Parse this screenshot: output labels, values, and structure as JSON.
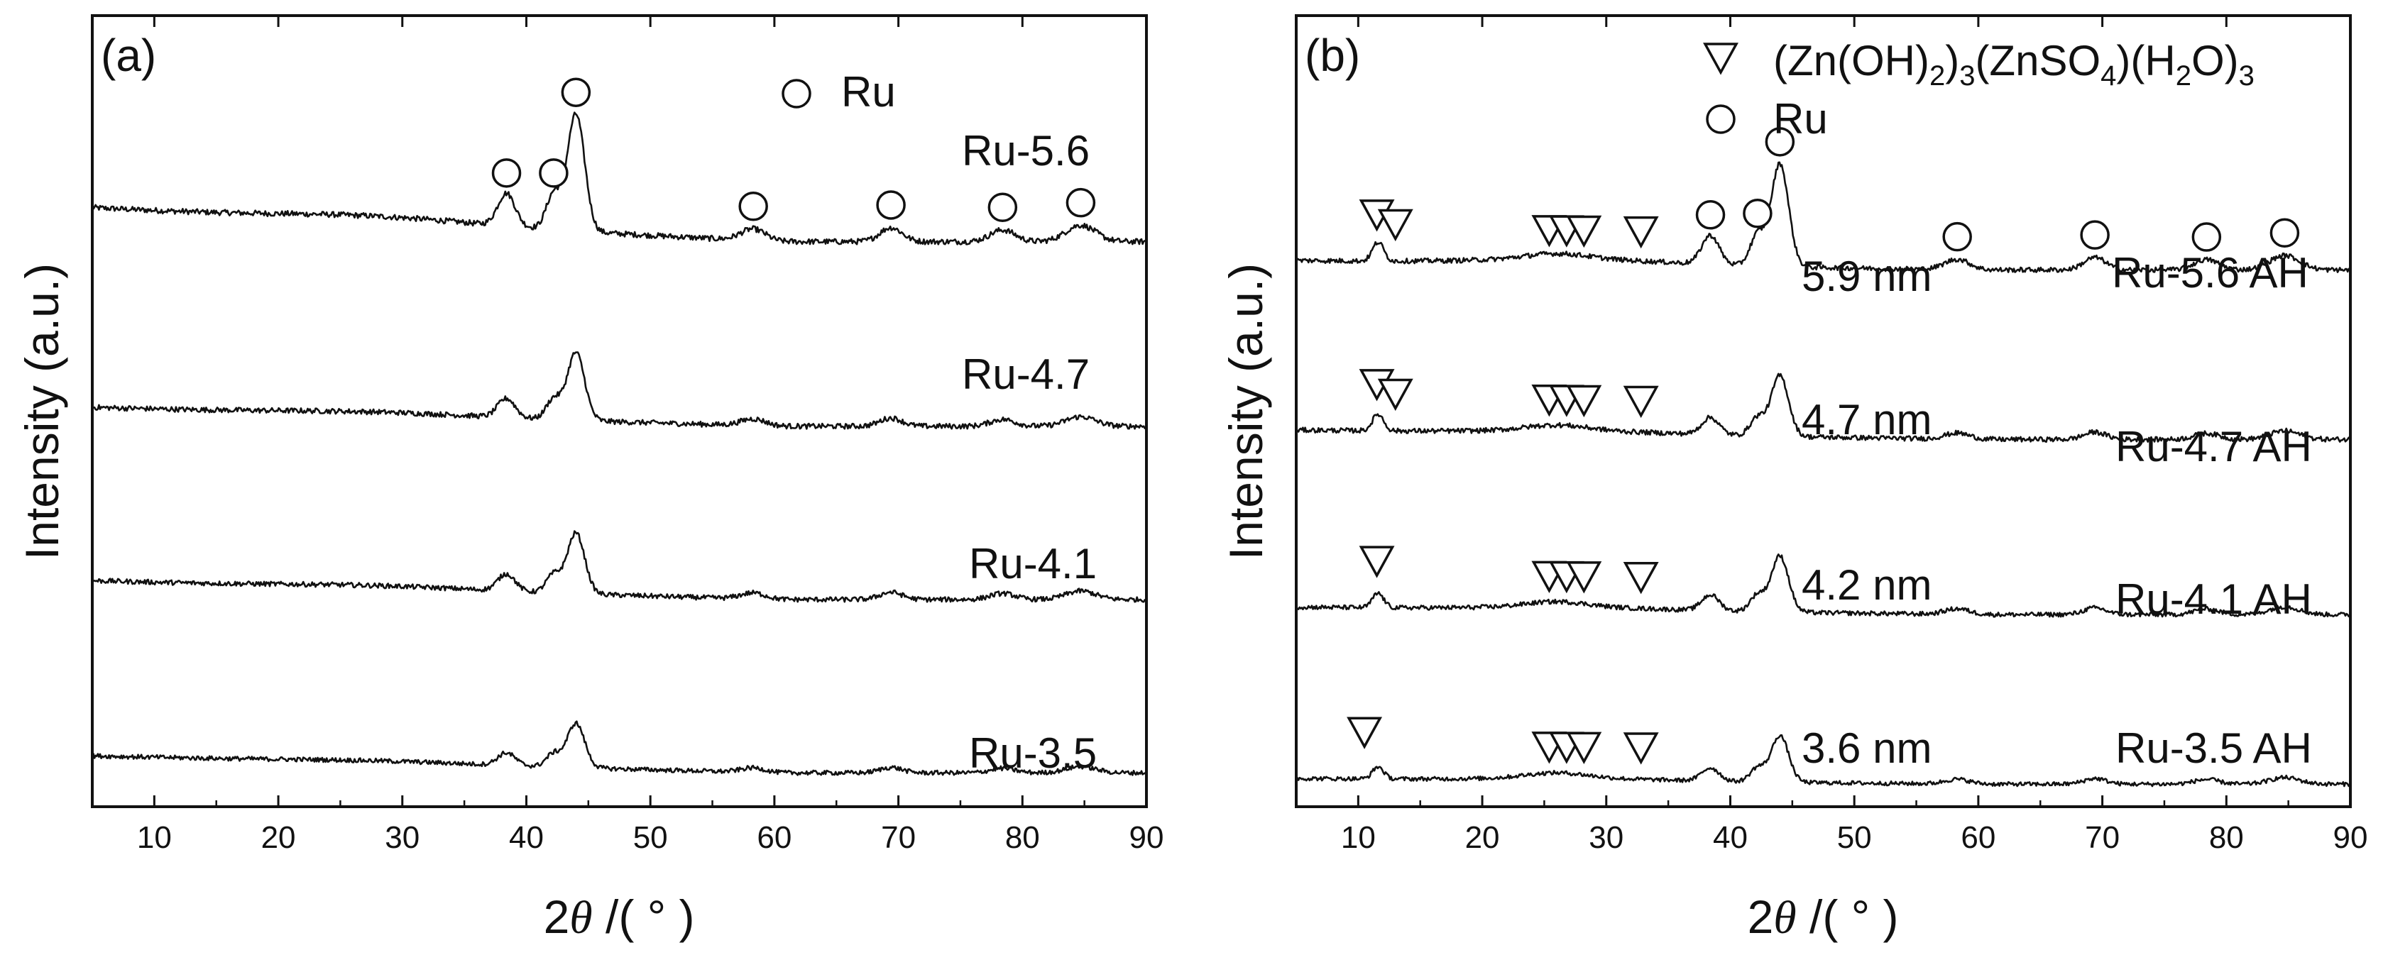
{
  "chart_data": [
    {
      "type": "line",
      "panel_label": "(a)",
      "title": "",
      "xlabel": {
        "prefix": "2",
        "theta": "θ",
        "suffix": " /( ° )"
      },
      "ylabel": "Intensity (a.u.)",
      "xlim": [
        5,
        90
      ],
      "xticks": [
        10,
        20,
        30,
        40,
        50,
        60,
        70,
        80,
        90
      ],
      "legend": [
        {
          "marker": "circle",
          "label": "Ru"
        }
      ],
      "ru_peaks": [
        38.4,
        42.2,
        44.0,
        58.3,
        69.4,
        78.4,
        84.7
      ],
      "series": [
        {
          "name": "Ru-5.6",
          "offset": 3.0,
          "scale": 1.0,
          "slope": 0.18,
          "noise": 0.03
        },
        {
          "name": "Ru-4.7",
          "offset": 2.02,
          "scale": 0.58,
          "slope": 0.1,
          "noise": 0.028
        },
        {
          "name": "Ru-4.1",
          "offset": 1.1,
          "scale": 0.52,
          "slope": 0.1,
          "noise": 0.026
        },
        {
          "name": "Ru-3.5",
          "offset": 0.18,
          "scale": 0.38,
          "slope": 0.09,
          "noise": 0.024
        }
      ]
    },
    {
      "type": "line",
      "panel_label": "(b)",
      "title": "",
      "xlabel": {
        "prefix": "2",
        "theta": "θ",
        "suffix": " /( ° )"
      },
      "ylabel": "Intensity (a.u.)",
      "xlim": [
        5,
        90
      ],
      "xticks": [
        10,
        20,
        30,
        40,
        50,
        60,
        70,
        80,
        90
      ],
      "legend": [
        {
          "marker": "triangle-down",
          "label": "(Zn(OH)2)3(ZnSO4)(H2O)3"
        },
        {
          "marker": "circle",
          "label": "Ru"
        }
      ],
      "ru_peaks": [
        38.4,
        42.2,
        44.0,
        58.3,
        69.4,
        78.4,
        84.7
      ],
      "zn_peaks": [
        11.5,
        13.0,
        25.4,
        26.8,
        28.2,
        32.8
      ],
      "series": [
        {
          "name": "Ru-5.6 AH",
          "size": "5.9 nm",
          "offset": 2.85,
          "scale": 0.88,
          "slope": 0.05,
          "noise": 0.026
        },
        {
          "name": "Ru-4.7 AH",
          "size": "4.7 nm",
          "offset": 1.95,
          "scale": 0.52,
          "slope": 0.05,
          "noise": 0.026
        },
        {
          "name": "Ru-4.1 AH",
          "size": "4.2 nm",
          "offset": 1.02,
          "scale": 0.48,
          "slope": 0.04,
          "noise": 0.024
        },
        {
          "name": "Ru-3.5 AH",
          "size": "3.6 nm",
          "offset": 0.12,
          "scale": 0.4,
          "slope": 0.03,
          "noise": 0.022
        }
      ]
    }
  ]
}
